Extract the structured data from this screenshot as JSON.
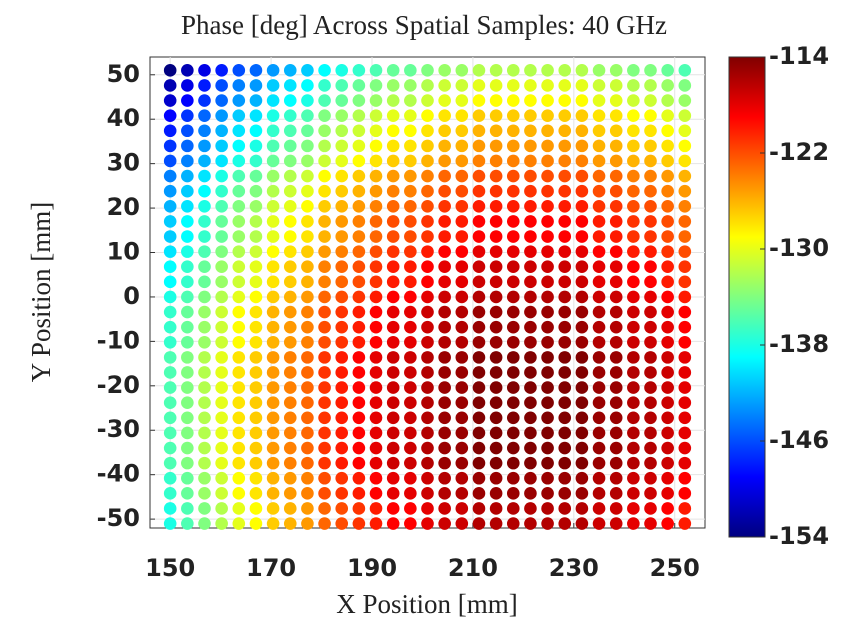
{
  "chart_data": {
    "type": "scatter",
    "title": "Phase [deg] Across Spatial Samples: 40 GHz",
    "x_label": "X Position [mm]",
    "y_label": "Y Position [mm]",
    "xlim": [
      146,
      256
    ],
    "ylim": [
      -52,
      54
    ],
    "xticks": [
      150,
      170,
      190,
      210,
      230,
      250
    ],
    "yticks": [
      -50,
      -40,
      -30,
      -20,
      -10,
      0,
      10,
      20,
      30,
      40,
      50
    ],
    "grid": true,
    "colormap": "jet",
    "clim": [
      -154,
      -114
    ],
    "cticks": [
      -114,
      -122,
      -130,
      -138,
      -146,
      -154
    ],
    "x": [
      150,
      153.4,
      156.8,
      160.2,
      163.6,
      167,
      170.4,
      173.8,
      177.2,
      180.6,
      184,
      187.4,
      190.8,
      194.2,
      197.6,
      201,
      204.4,
      207.8,
      211.2,
      214.6,
      218,
      221.4,
      224.8,
      228.2,
      231.6,
      235,
      238.4,
      241.8,
      245.2,
      248.6,
      252
    ],
    "y": [
      -51,
      -47.6,
      -44.2,
      -40.8,
      -37.4,
      -34,
      -30.6,
      -27.2,
      -23.8,
      -20.4,
      -17,
      -13.6,
      -10.2,
      -6.8,
      -3.4,
      0,
      3.4,
      6.8,
      10.2,
      13.6,
      17,
      20.4,
      23.8,
      27.2,
      30.6,
      34,
      37.4,
      40.8,
      44.2,
      47.6,
      51
    ],
    "values": [
      [
        -138,
        -136,
        -134,
        -132,
        -130,
        -129,
        -127,
        -126,
        -125,
        -123,
        -122,
        -121,
        -120,
        -119,
        -119,
        -118,
        -117,
        -117,
        -116,
        -116,
        -116,
        -116,
        -116,
        -116,
        -116,
        -117,
        -117,
        -118,
        -118,
        -119,
        -120
      ],
      [
        -138,
        -136,
        -134,
        -132,
        -130,
        -129,
        -127,
        -126,
        -125,
        -123,
        -122,
        -121,
        -120,
        -119,
        -119,
        -118,
        -117,
        -117,
        -116,
        -116,
        -116,
        -116,
        -116,
        -116,
        -116,
        -117,
        -117,
        -118,
        -118,
        -119,
        -120
      ],
      [
        -137,
        -135,
        -133,
        -131,
        -129,
        -128,
        -126,
        -125,
        -124,
        -122,
        -121,
        -120,
        -119,
        -118,
        -118,
        -117,
        -116,
        -116,
        -115,
        -115,
        -115,
        -115,
        -115,
        -115,
        -115,
        -116,
        -116,
        -117,
        -117,
        -118,
        -119
      ],
      [
        -137,
        -135,
        -133,
        -131,
        -129,
        -128,
        -126,
        -125,
        -124,
        -122,
        -121,
        -120,
        -119,
        -118,
        -118,
        -117,
        -116,
        -116,
        -115,
        -115,
        -115,
        -115,
        -115,
        -115,
        -115,
        -116,
        -116,
        -117,
        -117,
        -118,
        -119
      ],
      [
        -136,
        -134,
        -132,
        -130,
        -128,
        -127,
        -125,
        -124,
        -123,
        -121,
        -120,
        -119,
        -118,
        -117,
        -117,
        -116,
        -115,
        -115,
        -114,
        -114,
        -114,
        -114,
        -114,
        -114,
        -114,
        -115,
        -115,
        -116,
        -116,
        -117,
        -118
      ],
      [
        -136,
        -134,
        -132,
        -130,
        -128,
        -127,
        -125,
        -124,
        -123,
        -121,
        -120,
        -119,
        -118,
        -117,
        -117,
        -116,
        -115,
        -115,
        -114,
        -114,
        -114,
        -114,
        -114,
        -114,
        -114,
        -115,
        -115,
        -116,
        -116,
        -117,
        -118
      ],
      [
        -136,
        -134,
        -132,
        -130,
        -128,
        -127,
        -125,
        -124,
        -123,
        -121,
        -120,
        -119,
        -118,
        -117,
        -117,
        -116,
        -115,
        -115,
        -114,
        -114,
        -114,
        -114,
        -114,
        -114,
        -114,
        -115,
        -115,
        -116,
        -116,
        -117,
        -118
      ],
      [
        -136,
        -134,
        -132,
        -130,
        -128,
        -127,
        -125,
        -124,
        -123,
        -121,
        -120,
        -119,
        -118,
        -117,
        -117,
        -116,
        -115,
        -115,
        -114,
        -114,
        -114,
        -114,
        -114,
        -114,
        -114,
        -115,
        -115,
        -116,
        -116,
        -117,
        -118
      ],
      [
        -136,
        -134,
        -132,
        -130,
        -128,
        -127,
        -125,
        -124,
        -123,
        -121,
        -120,
        -119,
        -118,
        -117,
        -117,
        -116,
        -115,
        -115,
        -114,
        -114,
        -114,
        -114,
        -114,
        -114,
        -114,
        -115,
        -115,
        -116,
        -116,
        -117,
        -118
      ],
      [
        -136,
        -134,
        -132,
        -130,
        -128,
        -127,
        -125,
        -124,
        -123,
        -121,
        -120,
        -119,
        -118,
        -117,
        -117,
        -116,
        -115,
        -115,
        -114,
        -114,
        -114,
        -114,
        -114,
        -114,
        -114,
        -115,
        -115,
        -116,
        -116,
        -117,
        -118
      ],
      [
        -136,
        -134,
        -132,
        -130,
        -128,
        -127,
        -125,
        -124,
        -123,
        -121,
        -120,
        -119,
        -118,
        -117,
        -117,
        -116,
        -115,
        -115,
        -114,
        -114,
        -114,
        -114,
        -114,
        -114,
        -114,
        -115,
        -115,
        -116,
        -116,
        -117,
        -118
      ],
      [
        -136,
        -134,
        -132,
        -130,
        -128,
        -127,
        -125,
        -124,
        -123,
        -121,
        -120,
        -119,
        -118,
        -117,
        -117,
        -116,
        -115,
        -115,
        -114,
        -114,
        -114,
        -114,
        -114,
        -114,
        -114,
        -115,
        -115,
        -116,
        -116,
        -117,
        -118
      ],
      [
        -137,
        -135,
        -133,
        -131,
        -129,
        -128,
        -126,
        -125,
        -124,
        -122,
        -121,
        -120,
        -119,
        -118,
        -118,
        -117,
        -116,
        -116,
        -115,
        -115,
        -115,
        -115,
        -115,
        -115,
        -115,
        -116,
        -116,
        -117,
        -117,
        -118,
        -119
      ],
      [
        -137,
        -135,
        -133,
        -131,
        -129,
        -128,
        -126,
        -125,
        -124,
        -122,
        -121,
        -120,
        -119,
        -118,
        -118,
        -117,
        -116,
        -116,
        -115,
        -115,
        -115,
        -115,
        -115,
        -115,
        -115,
        -116,
        -116,
        -117,
        -117,
        -118,
        -119
      ],
      [
        -137,
        -135,
        -133,
        -131,
        -129,
        -128,
        -126,
        -125,
        -124,
        -122,
        -121,
        -120,
        -119,
        -118,
        -118,
        -117,
        -116,
        -116,
        -115,
        -115,
        -115,
        -115,
        -115,
        -115,
        -115,
        -116,
        -116,
        -117,
        -117,
        -118,
        -119
      ],
      [
        -138,
        -136,
        -134,
        -132,
        -130,
        -129,
        -127,
        -126,
        -125,
        -123,
        -122,
        -121,
        -120,
        -119,
        -119,
        -118,
        -117,
        -117,
        -116,
        -116,
        -116,
        -116,
        -116,
        -116,
        -116,
        -117,
        -117,
        -118,
        -118,
        -119,
        -120
      ],
      [
        -139,
        -137,
        -135,
        -133,
        -131,
        -130,
        -128,
        -127,
        -126,
        -124,
        -123,
        -122,
        -121,
        -120,
        -120,
        -119,
        -118,
        -118,
        -117,
        -117,
        -117,
        -117,
        -117,
        -117,
        -117,
        -118,
        -118,
        -119,
        -119,
        -120,
        -121
      ],
      [
        -139,
        -137,
        -135,
        -133,
        -131,
        -130,
        -128,
        -127,
        -126,
        -124,
        -123,
        -122,
        -121,
        -120,
        -120,
        -119,
        -118,
        -118,
        -117,
        -117,
        -117,
        -117,
        -117,
        -117,
        -117,
        -118,
        -118,
        -119,
        -119,
        -120,
        -121
      ],
      [
        -140,
        -138,
        -136,
        -134,
        -132,
        -131,
        -129,
        -128,
        -127,
        -125,
        -124,
        -123,
        -122,
        -121,
        -121,
        -120,
        -119,
        -119,
        -118,
        -118,
        -118,
        -118,
        -118,
        -118,
        -118,
        -119,
        -119,
        -120,
        -120,
        -121,
        -122
      ],
      [
        -141,
        -139,
        -137,
        -135,
        -133,
        -132,
        -130,
        -129,
        -128,
        -126,
        -125,
        -124,
        -123,
        -122,
        -122,
        -121,
        -120,
        -120,
        -119,
        -119,
        -119,
        -119,
        -119,
        -119,
        -119,
        -120,
        -120,
        -121,
        -121,
        -122,
        -123
      ],
      [
        -141,
        -139,
        -137,
        -135,
        -133,
        -132,
        -130,
        -129,
        -128,
        -126,
        -125,
        -124,
        -123,
        -122,
        -122,
        -121,
        -120,
        -120,
        -119,
        -119,
        -119,
        -119,
        -119,
        -119,
        -119,
        -120,
        -120,
        -121,
        -121,
        -122,
        -123
      ],
      [
        -142,
        -140,
        -138,
        -136,
        -134,
        -133,
        -131,
        -130,
        -129,
        -127,
        -126,
        -125,
        -124,
        -123,
        -123,
        -122,
        -121,
        -121,
        -120,
        -120,
        -120,
        -120,
        -120,
        -120,
        -120,
        -121,
        -121,
        -122,
        -122,
        -123,
        -124
      ],
      [
        -143,
        -141,
        -139,
        -137,
        -135,
        -134,
        -132,
        -131,
        -130,
        -128,
        -127,
        -126,
        -125,
        -124,
        -124,
        -123,
        -122,
        -122,
        -121,
        -121,
        -121,
        -121,
        -121,
        -121,
        -121,
        -122,
        -122,
        -123,
        -123,
        -124,
        -125
      ],
      [
        -144,
        -142,
        -140,
        -138,
        -136,
        -135,
        -133,
        -132,
        -131,
        -129,
        -128,
        -127,
        -126,
        -125,
        -125,
        -124,
        -123,
        -123,
        -122,
        -122,
        -122,
        -122,
        -122,
        -122,
        -122,
        -123,
        -123,
        -124,
        -124,
        -125,
        -126
      ],
      [
        -146,
        -144,
        -142,
        -140,
        -138,
        -137,
        -135,
        -134,
        -133,
        -131,
        -130,
        -129,
        -128,
        -127,
        -127,
        -126,
        -125,
        -125,
        -124,
        -124,
        -124,
        -124,
        -124,
        -124,
        -124,
        -125,
        -125,
        -126,
        -126,
        -127,
        -128
      ],
      [
        -147,
        -145,
        -143,
        -141,
        -139,
        -138,
        -136,
        -135,
        -134,
        -132,
        -131,
        -130,
        -129,
        -128,
        -128,
        -127,
        -126,
        -126,
        -125,
        -125,
        -125,
        -125,
        -125,
        -125,
        -125,
        -126,
        -126,
        -127,
        -127,
        -128,
        -129
      ],
      [
        -148,
        -146,
        -144,
        -142,
        -140,
        -139,
        -137,
        -136,
        -135,
        -133,
        -132,
        -131,
        -130,
        -129,
        -129,
        -128,
        -127,
        -127,
        -126,
        -126,
        -126,
        -126,
        -126,
        -126,
        -126,
        -127,
        -127,
        -128,
        -128,
        -129,
        -130
      ],
      [
        -149,
        -147,
        -145,
        -143,
        -141,
        -140,
        -138,
        -137,
        -136,
        -134,
        -133,
        -132,
        -131,
        -130,
        -130,
        -129,
        -128,
        -128,
        -127,
        -127,
        -127,
        -127,
        -127,
        -127,
        -127,
        -128,
        -128,
        -129,
        -129,
        -130,
        -131
      ],
      [
        -151,
        -149,
        -147,
        -145,
        -143,
        -142,
        -140,
        -139,
        -138,
        -136,
        -135,
        -134,
        -133,
        -132,
        -132,
        -131,
        -130,
        -130,
        -129,
        -129,
        -129,
        -129,
        -129,
        -129,
        -129,
        -130,
        -130,
        -131,
        -131,
        -132,
        -133
      ],
      [
        -152,
        -150,
        -148,
        -146,
        -144,
        -143,
        -141,
        -140,
        -139,
        -137,
        -136,
        -135,
        -134,
        -133,
        -133,
        -132,
        -131,
        -131,
        -130,
        -130,
        -130,
        -130,
        -130,
        -130,
        -130,
        -131,
        -131,
        -132,
        -132,
        -133,
        -134
      ],
      [
        -154,
        -152,
        -150,
        -148,
        -146,
        -145,
        -143,
        -142,
        -141,
        -139,
        -138,
        -137,
        -136,
        -135,
        -135,
        -134,
        -133,
        -133,
        -132,
        -132,
        -132,
        -132,
        -132,
        -132,
        -132,
        -133,
        -133,
        -134,
        -134,
        -135,
        -136
      ]
    ]
  }
}
